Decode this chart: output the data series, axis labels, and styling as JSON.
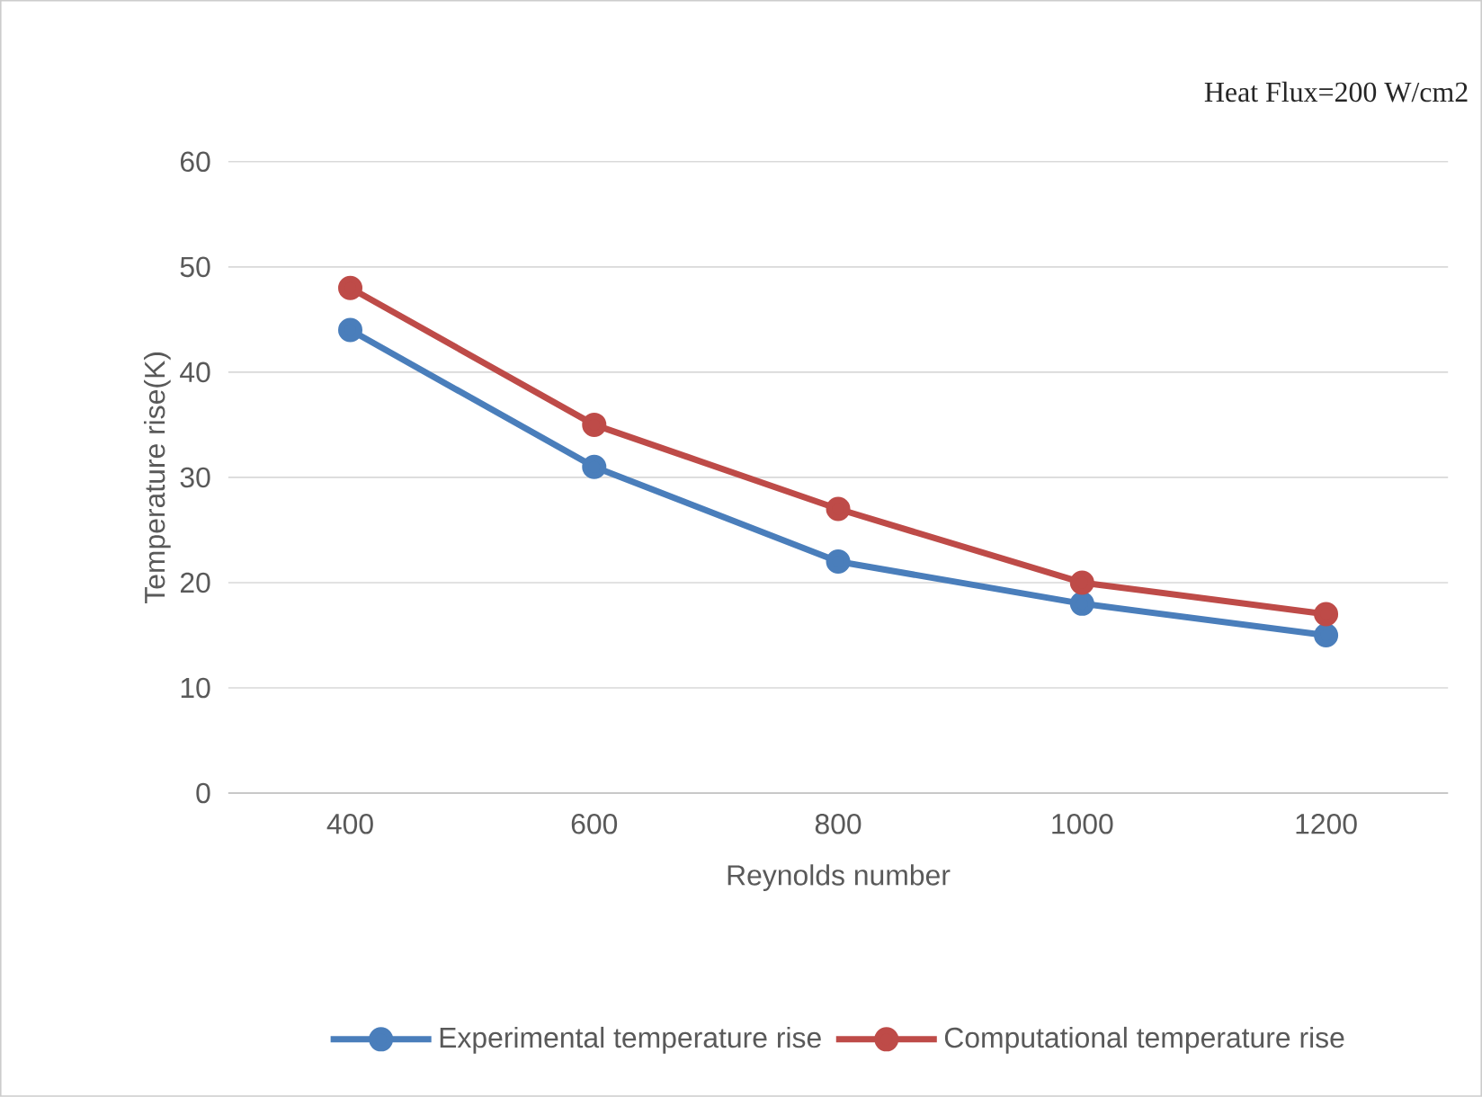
{
  "chart_data": {
    "type": "line",
    "categories": [
      "400",
      "600",
      "800",
      "1000",
      "1200"
    ],
    "series": [
      {
        "name": "Experimental temperature rise",
        "color": "#4a7ebb",
        "values": [
          44,
          31,
          22,
          18,
          15
        ]
      },
      {
        "name": "Computational temperature rise",
        "color": "#be4b48",
        "values": [
          48,
          35,
          27,
          20,
          17
        ]
      }
    ],
    "xlabel": "Reynolds number",
    "ylabel": "Temperature rise(K)",
    "annotations": [
      "Heat Flux=200 W/cm2"
    ],
    "ylim": [
      0,
      60
    ],
    "yticks": [
      0,
      10,
      20,
      30,
      40,
      50,
      60
    ],
    "grid": "y",
    "legend": "bottom",
    "marker": "circle",
    "line_style": "solid"
  }
}
